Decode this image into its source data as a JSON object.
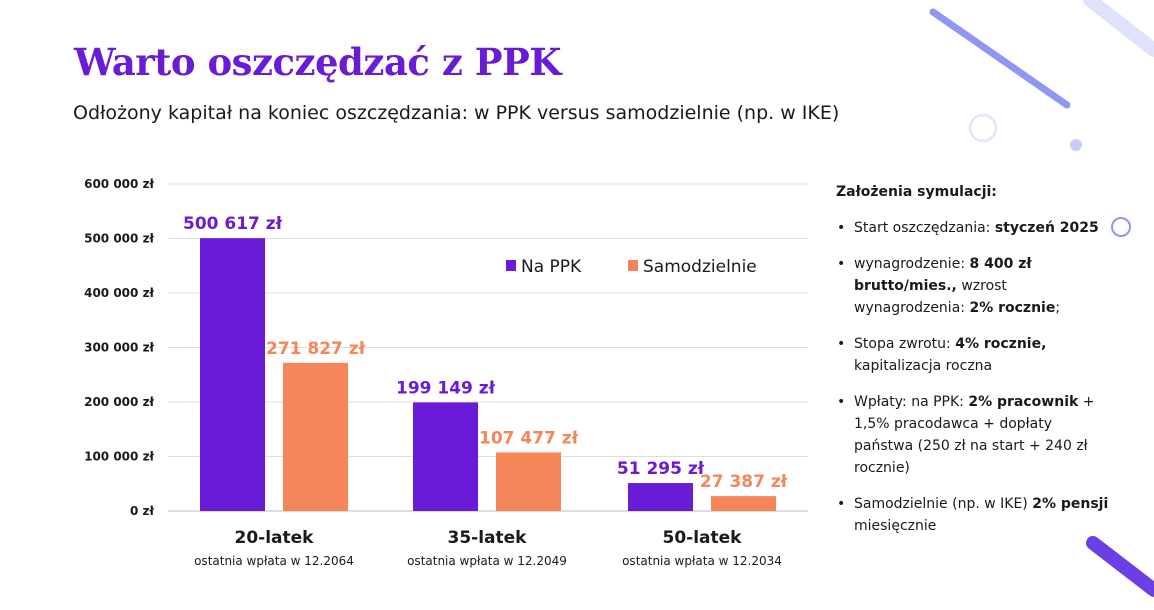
{
  "title": "Warto oszczędzać z PPK",
  "subtitle": "Odłożony kapitał na koniec oszczędzania: w PPK versus samodzielnie (np. w IKE)",
  "colors": {
    "title": "#6a1bd6",
    "ppk": "#6a1bd6",
    "self": "#f5865a",
    "deco_line": "#8e97f2",
    "deco_circle": "#c7cdf6",
    "deco_bar": "#6b3ee6"
  },
  "chart_data": {
    "type": "bar",
    "categories": [
      "20-latek",
      "35-latek",
      "50-latek"
    ],
    "category_subtitles": [
      "ostatnia wpłata w 12.2064",
      "ostatnia wpłata w 12.2049",
      "ostatnia wpłata w 12.2034"
    ],
    "series": [
      {
        "name": "Na PPK",
        "values": [
          500617,
          199149,
          51295
        ],
        "labels": [
          "500 617 zł",
          "199 149 zł",
          "51 295 zł"
        ]
      },
      {
        "name": "Samodzielnie",
        "values": [
          271827,
          107477,
          27387
        ],
        "labels": [
          "271 827 zł",
          "107 477 zł",
          "27 387 zł"
        ]
      }
    ],
    "ylim": [
      0,
      600000
    ],
    "yticks": [
      0,
      100000,
      200000,
      300000,
      400000,
      500000,
      600000
    ],
    "ytick_labels": [
      "0 zł",
      "100 000 zł",
      "200 000 zł",
      "300 000 zł",
      "400 000 zł",
      "500 000 zł",
      "600 000 zł"
    ],
    "grid": true,
    "legend_position": "top-right"
  },
  "assumptions": {
    "heading": "Założenia symulacji:",
    "items": [
      [
        {
          "t": "Start oszczędzania: "
        },
        {
          "t": "styczeń 2025",
          "b": true
        }
      ],
      [
        {
          "t": "wynagrodzenie: "
        },
        {
          "t": "8 400 zł brutto/mies.,",
          "b": true
        },
        {
          "t": " wzrost wynagrodzenia: "
        },
        {
          "t": "2% rocznie",
          "b": true
        },
        {
          "t": ";"
        }
      ],
      [
        {
          "t": "Stopa zwrotu: "
        },
        {
          "t": "4% rocznie,",
          "b": true
        },
        {
          "t": " kapitalizacja roczna"
        }
      ],
      [
        {
          "t": "Wpłaty:  na PPK: "
        },
        {
          "t": "2% pracownik",
          "b": true
        },
        {
          "t": " + 1,5% pracodawca + dopłaty państwa (250 zł na start + 240 zł rocznie)"
        }
      ],
      [
        {
          "t": "Samodzielnie (np. w IKE) "
        },
        {
          "t": "2% pensji",
          "b": true
        },
        {
          "t": " miesięcznie"
        }
      ]
    ]
  }
}
